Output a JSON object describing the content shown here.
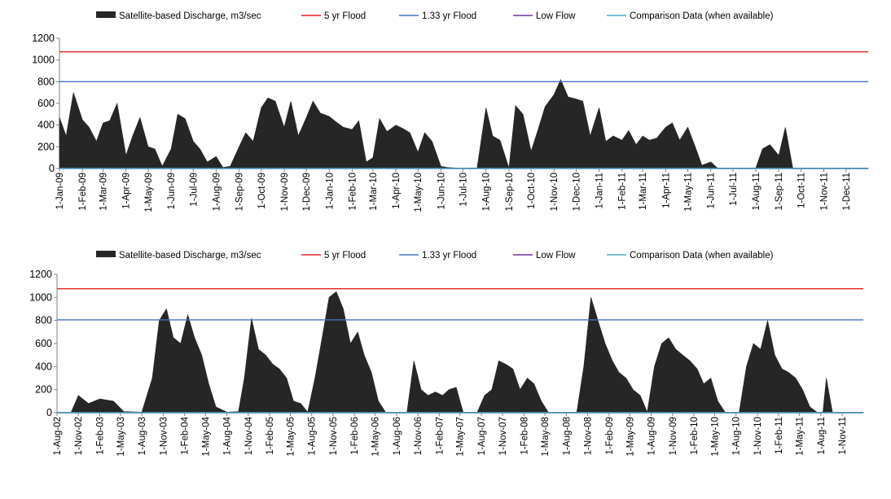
{
  "chart_data": [
    {
      "type": "area",
      "title": "",
      "xlabel": "",
      "ylabel": "",
      "ylim": [
        0,
        1200
      ],
      "yticks": [
        0,
        200,
        400,
        600,
        800,
        1000,
        1200
      ],
      "grid": false,
      "legend_position": "top",
      "colors": {
        "discharge": "#262626",
        "flood5": "#e02020",
        "flood133": "#4472c4",
        "lowflow": "#7030a0",
        "comparison": "#4bacc6"
      },
      "legend": [
        "Satellite-based Discharge, m3/sec",
        "5 yr Flood",
        "1.33 yr Flood",
        "Low Flow",
        "Comparison Data (when available)"
      ],
      "x_start": "2009-01-01",
      "x_end": "2011-12-31",
      "xtick_labels": [
        "1-Jan-09",
        "1-Feb-09",
        "1-Mar-09",
        "1-Apr-09",
        "1-May-09",
        "1-Jun-09",
        "1-Jul-09",
        "1-Aug-09",
        "1-Sep-09",
        "1-Oct-09",
        "1-Nov-09",
        "1-Dec-09",
        "1-Jan-10",
        "1-Feb-10",
        "1-Mar-10",
        "1-Apr-10",
        "1-May-10",
        "1-Jun-10",
        "1-Jul-10",
        "1-Aug-10",
        "1-Sep-10",
        "1-Oct-10",
        "1-Nov-10",
        "1-Dec-10",
        "1-Jan-11",
        "1-Feb-11",
        "1-Mar-11",
        "1-Apr-11",
        "1-May-11",
        "1-Jun-11",
        "1-Jul-11",
        "1-Aug-11",
        "1-Sep-11",
        "1-Oct-11",
        "1-Nov-11",
        "1-Dec-11"
      ],
      "series": [
        {
          "name": "Satellite-based Discharge, m3/sec",
          "kind": "area",
          "x": [
            "2009-01-01",
            "2009-01-10",
            "2009-01-20",
            "2009-02-01",
            "2009-02-10",
            "2009-02-20",
            "2009-03-01",
            "2009-03-10",
            "2009-03-20",
            "2009-04-01",
            "2009-04-10",
            "2009-04-20",
            "2009-05-01",
            "2009-05-10",
            "2009-05-20",
            "2009-06-01",
            "2009-06-10",
            "2009-06-20",
            "2009-07-01",
            "2009-07-10",
            "2009-07-20",
            "2009-08-01",
            "2009-08-10",
            "2009-08-20",
            "2009-09-01",
            "2009-09-10",
            "2009-09-20",
            "2009-10-01",
            "2009-10-10",
            "2009-10-20",
            "2009-11-01",
            "2009-11-10",
            "2009-11-20",
            "2009-12-01",
            "2009-12-10",
            "2009-12-20",
            "2010-01-01",
            "2010-01-10",
            "2010-01-20",
            "2010-02-01",
            "2010-02-10",
            "2010-02-20",
            "2010-03-01",
            "2010-03-10",
            "2010-03-20",
            "2010-04-01",
            "2010-04-10",
            "2010-04-20",
            "2010-05-01",
            "2010-05-10",
            "2010-05-20",
            "2010-06-01",
            "2010-06-10",
            "2010-06-20",
            "2010-07-01",
            "2010-07-10",
            "2010-07-20",
            "2010-08-01",
            "2010-08-10",
            "2010-08-20",
            "2010-09-01",
            "2010-09-10",
            "2010-09-20",
            "2010-10-01",
            "2010-10-10",
            "2010-10-20",
            "2010-11-01",
            "2010-11-10",
            "2010-11-20",
            "2010-12-01",
            "2010-12-10",
            "2010-12-20",
            "2011-01-01",
            "2011-01-10",
            "2011-01-20",
            "2011-02-01",
            "2011-02-10",
            "2011-02-20",
            "2011-03-01",
            "2011-03-10",
            "2011-03-20",
            "2011-04-01",
            "2011-04-10",
            "2011-04-20",
            "2011-05-01",
            "2011-05-10",
            "2011-05-20",
            "2011-06-01",
            "2011-06-10",
            "2011-06-20",
            "2011-07-01",
            "2011-07-10",
            "2011-07-20",
            "2011-08-01",
            "2011-08-10",
            "2011-08-20",
            "2011-09-01",
            "2011-09-10",
            "2011-09-20",
            "2011-10-01",
            "2011-10-20",
            "2011-11-10",
            "2011-12-01",
            "2011-12-31"
          ],
          "y": [
            470,
            300,
            700,
            450,
            380,
            250,
            420,
            440,
            600,
            120,
            300,
            470,
            200,
            180,
            20,
            180,
            500,
            460,
            250,
            180,
            60,
            110,
            10,
            20,
            200,
            330,
            250,
            560,
            650,
            620,
            380,
            620,
            300,
            470,
            620,
            510,
            480,
            430,
            380,
            360,
            440,
            60,
            100,
            460,
            340,
            400,
            370,
            330,
            150,
            330,
            250,
            20,
            10,
            5,
            5,
            5,
            5,
            560,
            300,
            260,
            5,
            580,
            500,
            160,
            350,
            570,
            680,
            820,
            660,
            640,
            620,
            300,
            560,
            250,
            300,
            260,
            350,
            220,
            300,
            260,
            280,
            380,
            420,
            260,
            380,
            220,
            30,
            60,
            5,
            5,
            5,
            5,
            5,
            5,
            180,
            220,
            120,
            380,
            5,
            5,
            5,
            5,
            5,
            5
          ]
        },
        {
          "name": "5 yr Flood",
          "kind": "line",
          "value": 1075
        },
        {
          "name": "1.33 yr Flood",
          "kind": "line",
          "value": 800
        },
        {
          "name": "Low Flow",
          "kind": "line",
          "value": 0
        },
        {
          "name": "Comparison Data (when available)",
          "kind": "line",
          "value": 0
        }
      ]
    },
    {
      "type": "area",
      "title": "",
      "xlabel": "",
      "ylabel": "",
      "ylim": [
        0,
        1200
      ],
      "yticks": [
        0,
        200,
        400,
        600,
        800,
        1000,
        1200
      ],
      "grid": false,
      "legend_position": "top",
      "colors": {
        "discharge": "#262626",
        "flood5": "#e02020",
        "flood133": "#4472c4",
        "lowflow": "#7030a0",
        "comparison": "#4bacc6"
      },
      "legend": [
        "Satellite-based Discharge, m3/sec",
        "5 yr Flood",
        "1.33 yr Flood",
        "Low Flow",
        "Comparison Data (when available)"
      ],
      "x_start": "2002-08-01",
      "x_end": "2012-01-31",
      "xtick_labels": [
        "1-Aug-02",
        "1-Nov-02",
        "1-Feb-03",
        "1-May-03",
        "1-Aug-03",
        "1-Nov-03",
        "1-Feb-04",
        "1-May-04",
        "1-Aug-04",
        "1-Nov-04",
        "1-Feb-05",
        "1-May-05",
        "1-Aug-05",
        "1-Nov-05",
        "1-Feb-06",
        "1-May-06",
        "1-Aug-06",
        "1-Nov-06",
        "1-Feb-07",
        "1-May-07",
        "1-Aug-07",
        "1-Nov-07",
        "1-Feb-08",
        "1-May-08",
        "1-Aug-08",
        "1-Nov-08",
        "1-Feb-09",
        "1-May-09",
        "1-Aug-09",
        "1-Nov-09",
        "1-Feb-10",
        "1-May-10",
        "1-Aug-10",
        "1-Nov-10",
        "1-Feb-11",
        "1-May-11",
        "1-Aug-11",
        "1-Nov-11"
      ],
      "series": [
        {
          "name": "Satellite-based Discharge, m3/sec",
          "kind": "area",
          "x": [
            "2002-08-01",
            "2002-10-01",
            "2002-11-01",
            "2002-12-15",
            "2003-02-01",
            "2003-04-01",
            "2003-05-15",
            "2003-08-01",
            "2003-09-15",
            "2003-10-15",
            "2003-11-15",
            "2003-12-15",
            "2004-01-15",
            "2004-02-15",
            "2004-03-15",
            "2004-04-15",
            "2004-05-15",
            "2004-06-15",
            "2004-08-01",
            "2004-09-20",
            "2004-10-15",
            "2004-11-15",
            "2004-12-15",
            "2005-01-15",
            "2005-02-15",
            "2005-03-15",
            "2005-04-15",
            "2005-05-15",
            "2005-06-15",
            "2005-07-15",
            "2005-08-15",
            "2005-09-15",
            "2005-10-15",
            "2005-11-15",
            "2005-12-15",
            "2006-01-15",
            "2006-02-15",
            "2006-03-15",
            "2006-04-15",
            "2006-05-15",
            "2006-06-15",
            "2006-08-01",
            "2006-09-15",
            "2006-10-15",
            "2006-11-15",
            "2006-12-15",
            "2007-01-15",
            "2007-02-15",
            "2007-03-15",
            "2007-04-15",
            "2007-05-15",
            "2007-07-15",
            "2007-08-15",
            "2007-09-15",
            "2007-10-15",
            "2007-11-15",
            "2007-12-15",
            "2008-01-15",
            "2008-02-15",
            "2008-03-15",
            "2008-04-15",
            "2008-05-15",
            "2008-07-15",
            "2008-09-15",
            "2008-10-15",
            "2008-11-15",
            "2008-12-15",
            "2009-01-15",
            "2009-02-15",
            "2009-03-15",
            "2009-04-15",
            "2009-05-15",
            "2009-06-15",
            "2009-07-15",
            "2009-08-15",
            "2009-09-15",
            "2009-10-15",
            "2009-11-15",
            "2009-12-15",
            "2010-01-15",
            "2010-02-15",
            "2010-03-15",
            "2010-04-15",
            "2010-05-15",
            "2010-06-15",
            "2010-07-15",
            "2010-08-15",
            "2010-09-15",
            "2010-10-15",
            "2010-11-15",
            "2010-12-15",
            "2011-01-15",
            "2011-02-15",
            "2011-03-15",
            "2011-04-15",
            "2011-05-15",
            "2011-06-15",
            "2011-07-15",
            "2011-08-10",
            "2011-08-25",
            "2011-09-20",
            "2011-11-01",
            "2012-01-31"
          ],
          "y": [
            5,
            5,
            150,
            80,
            120,
            100,
            10,
            5,
            300,
            800,
            900,
            650,
            600,
            850,
            650,
            500,
            250,
            50,
            5,
            10,
            300,
            820,
            550,
            500,
            420,
            380,
            300,
            100,
            80,
            5,
            300,
            650,
            1000,
            1050,
            900,
            600,
            700,
            500,
            350,
            100,
            5,
            5,
            5,
            450,
            200,
            150,
            180,
            150,
            200,
            220,
            5,
            5,
            150,
            200,
            450,
            420,
            380,
            200,
            300,
            250,
            100,
            5,
            5,
            5,
            400,
            1000,
            800,
            600,
            450,
            350,
            300,
            200,
            150,
            5,
            400,
            600,
            650,
            550,
            500,
            450,
            380,
            250,
            300,
            100,
            5,
            5,
            5,
            400,
            600,
            550,
            800,
            500,
            380,
            350,
            300,
            200,
            50,
            5,
            5,
            300,
            5,
            5,
            5
          ]
        },
        {
          "name": "5 yr Flood",
          "kind": "line",
          "value": 1075
        },
        {
          "name": "1.33 yr Flood",
          "kind": "line",
          "value": 805
        },
        {
          "name": "Low Flow",
          "kind": "line",
          "value": 0
        },
        {
          "name": "Comparison Data (when available)",
          "kind": "line",
          "value": 0
        }
      ]
    }
  ]
}
